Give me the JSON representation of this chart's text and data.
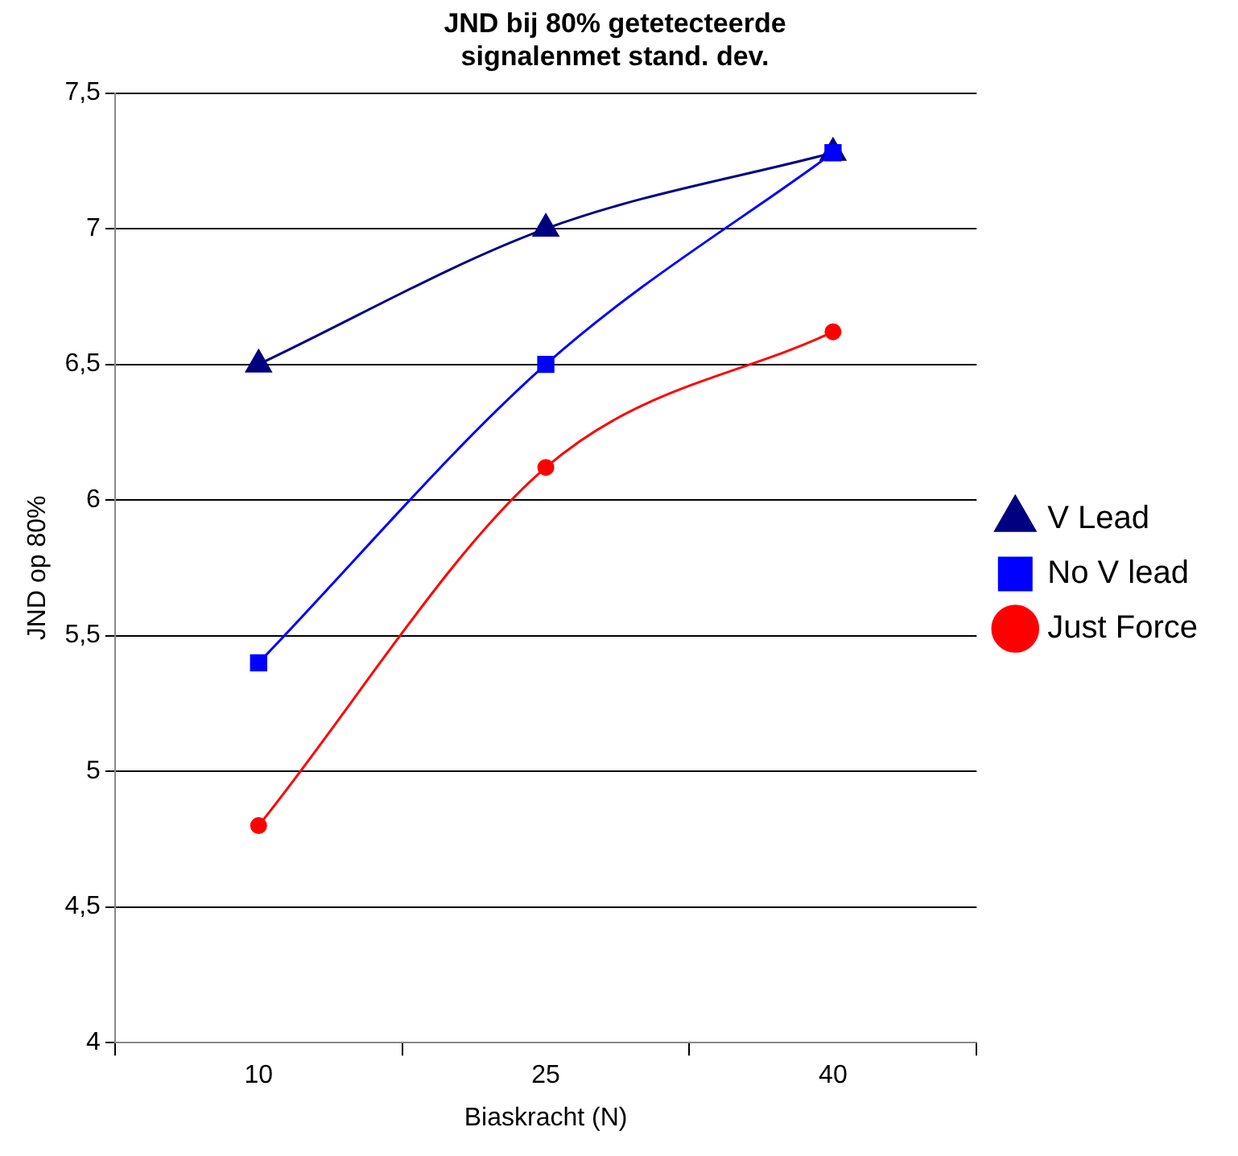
{
  "chart_data": {
    "type": "line",
    "title": "JND bij 80% getetecteerde\nsignalenmet stand. dev.",
    "xlabel": "Biaskracht (N)",
    "ylabel": "JND op 80%",
    "categories": [
      "10",
      "25",
      "40"
    ],
    "series": [
      {
        "name": "V Lead",
        "color": "#000080",
        "marker": "triangle",
        "values": [
          6.5,
          7.0,
          7.28
        ]
      },
      {
        "name": "No V lead",
        "color": "#0000ff",
        "marker": "square",
        "values": [
          5.4,
          6.5,
          7.28
        ]
      },
      {
        "name": "Just Force",
        "color": "#ff0000",
        "marker": "circle",
        "values": [
          4.8,
          6.12,
          6.62
        ]
      }
    ],
    "ylim": [
      4,
      7.5
    ],
    "yticks": [
      4,
      {
        "value": 4.5,
        "label": "4,5"
      },
      5,
      {
        "value": 5.5,
        "label": "5,5"
      },
      6,
      {
        "value": 6.5,
        "label": "6,5"
      },
      7,
      {
        "value": 7.5,
        "label": "7,5"
      }
    ],
    "grid": "y",
    "legend": "right"
  }
}
